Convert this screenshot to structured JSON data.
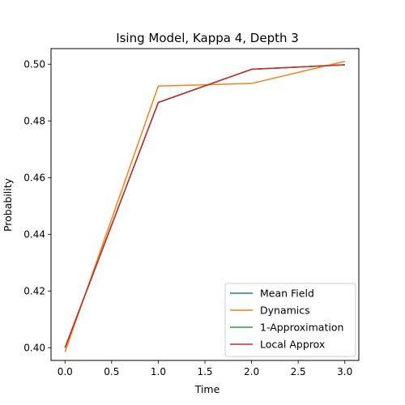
{
  "chart_data": {
    "type": "line",
    "title": "Ising Model, Kappa 4, Depth 3",
    "xlabel": "Time",
    "ylabel": "Probability",
    "xlim": [
      -0.15,
      3.15
    ],
    "ylim": [
      0.3955,
      0.5055
    ],
    "xticks": [
      "0.0",
      "0.5",
      "1.0",
      "1.5",
      "2.0",
      "2.5",
      "3.0"
    ],
    "yticks": [
      "0.40",
      "0.42",
      "0.44",
      "0.46",
      "0.48",
      "0.50"
    ],
    "legend_position": "lower-right",
    "grid": false,
    "series": [
      {
        "name": "Mean Field",
        "color": "#1f77b4",
        "x": [
          0,
          1,
          2,
          3
        ],
        "y": [
          0.4,
          0.4865,
          0.4982,
          0.4998
        ]
      },
      {
        "name": "Dynamics",
        "color": "#ff7f0e",
        "x": [
          0,
          1,
          2,
          3
        ],
        "y": [
          0.3985,
          0.4923,
          0.4932,
          0.501
        ]
      },
      {
        "name": "1-Approximation",
        "color": "#2ca02c",
        "x": [
          0,
          1,
          2,
          3
        ],
        "y": [
          0.4,
          0.4865,
          0.4982,
          0.4998
        ]
      },
      {
        "name": "Local Approx",
        "color": "#d62728",
        "x": [
          0,
          1,
          2,
          3
        ],
        "y": [
          0.4,
          0.4865,
          0.4982,
          0.4998
        ]
      }
    ]
  }
}
